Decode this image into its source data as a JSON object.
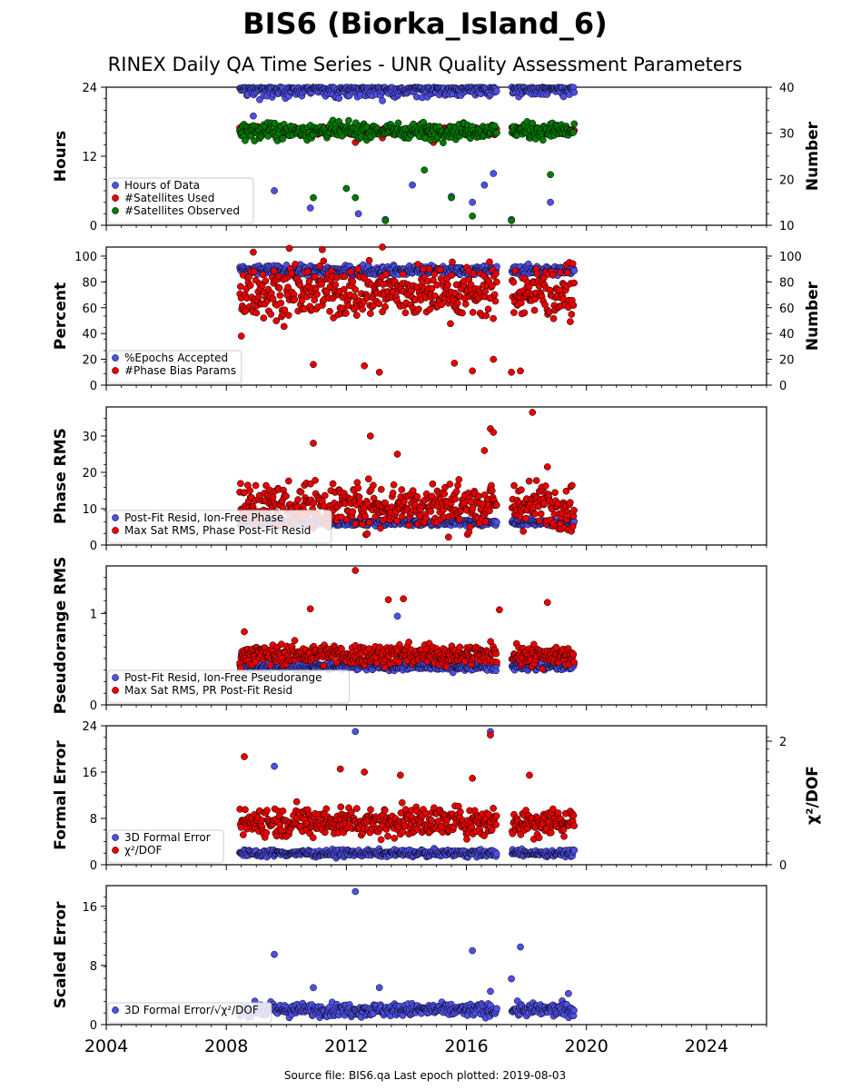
{
  "title": "BIS6 (Biorka_Island_6)",
  "subtitle": "RINEX Daily QA Time Series - UNR Quality Assessment Parameters",
  "footer": "Source file: BIS6.qa Last epoch plotted: 2019-08-03",
  "colors": {
    "blue": "#4f4fe8",
    "red": "#e60000",
    "green": "#007a00",
    "outline": "#000000"
  },
  "x_axis": {
    "range": [
      2004,
      2026
    ],
    "ticks": [
      2004,
      2008,
      2012,
      2016,
      2020,
      2024
    ]
  },
  "chart_data": [
    {
      "type": "scatter",
      "ylabel": "Hours",
      "ylim": [
        0,
        24
      ],
      "yticks": [
        "0",
        "12",
        "24"
      ],
      "ylabel_right": "Number",
      "ylim_right": [
        10,
        40
      ],
      "yticks_right": [
        "10",
        "20",
        "30",
        "40"
      ],
      "legend": [
        "Hours of Data",
        "#Satellites Used",
        "#Satellites Observed"
      ],
      "legend_loc": "lower-left",
      "series": [
        {
          "name": "Hours of Data",
          "color": "blue",
          "axis": "left",
          "base": 23.7,
          "spread": 1.0,
          "outliers": [
            [
              2008.9,
              19
            ],
            [
              2009.6,
              6
            ],
            [
              2010.8,
              3
            ],
            [
              2012.4,
              2
            ],
            [
              2013.3,
              1
            ],
            [
              2014.2,
              7
            ],
            [
              2015.5,
              5
            ],
            [
              2016.2,
              4
            ],
            [
              2016.6,
              7
            ],
            [
              2016.9,
              9
            ],
            [
              2017.5,
              1
            ],
            [
              2018.8,
              4
            ]
          ]
        },
        {
          "name": "#Satellites Used",
          "color": "red",
          "axis": "right",
          "base": 30.5,
          "spread": 0.6,
          "outliers": [
            [
              2012.3,
              28
            ],
            [
              2013.2,
              29
            ],
            [
              2014.9,
              28
            ],
            [
              2018.2,
              31
            ]
          ]
        },
        {
          "name": "#Satellites Observed",
          "color": "green",
          "axis": "right",
          "base": 30.5,
          "spread": 1.2,
          "outliers": [
            [
              2010.9,
              16
            ],
            [
              2012.0,
              18
            ],
            [
              2012.3,
              16
            ],
            [
              2013.3,
              11
            ],
            [
              2014.6,
              22
            ],
            [
              2015.5,
              16
            ],
            [
              2016.2,
              12
            ],
            [
              2017.5,
              11
            ],
            [
              2018.8,
              21
            ]
          ]
        }
      ]
    },
    {
      "type": "scatter",
      "ylabel": "Percent",
      "ylim": [
        0,
        107
      ],
      "yticks": [
        "0",
        "20",
        "40",
        "60",
        "80",
        "100"
      ],
      "ylabel_right": "Number",
      "ylim_right": [
        0,
        107
      ],
      "yticks_right": [
        "0",
        "20",
        "40",
        "60",
        "80",
        "100"
      ],
      "legend": [
        "%Epochs Accepted",
        "#Phase Bias Params"
      ],
      "legend_loc": "lower-left",
      "series": [
        {
          "name": "%Epochs Accepted",
          "color": "blue",
          "axis": "left",
          "base": 89,
          "spread": 2.5,
          "outliers": []
        },
        {
          "name": "#Phase Bias Params",
          "color": "red",
          "axis": "right",
          "base": 72,
          "spread": 14,
          "outliers": [
            [
              2008.5,
              38
            ],
            [
              2010.9,
              16
            ],
            [
              2012.6,
              15
            ],
            [
              2013.1,
              10
            ],
            [
              2015.6,
              17
            ],
            [
              2016.2,
              11
            ],
            [
              2016.9,
              20
            ],
            [
              2017.5,
              10
            ],
            [
              2017.8,
              11
            ],
            [
              2008.9,
              103
            ],
            [
              2010.1,
              106
            ],
            [
              2011.2,
              105
            ],
            [
              2013.2,
              107
            ]
          ]
        }
      ]
    },
    {
      "type": "scatter",
      "ylabel": "Phase RMS",
      "ylim": [
        0,
        38
      ],
      "yticks": [
        "0",
        "10",
        "20",
        "30"
      ],
      "legend": [
        "Post-Fit Resid, Ion-Free Phase",
        "Max Sat RMS, Phase Post-Fit Resid"
      ],
      "legend_loc": "lower-left",
      "series": [
        {
          "name": "Post-Fit Resid, Ion-Free Phase",
          "color": "blue",
          "axis": "left",
          "base": 6.2,
          "spread": 0.6,
          "outliers": [
            [
              2019.4,
              4.5
            ]
          ]
        },
        {
          "name": "Max Sat RMS, Phase Post-Fit Resid",
          "color": "red",
          "axis": "left",
          "base": 11,
          "spread": 4.5,
          "outliers": [
            [
              2010.9,
              28
            ],
            [
              2012.8,
              30
            ],
            [
              2013.7,
              25
            ],
            [
              2016.6,
              26
            ],
            [
              2016.8,
              32
            ],
            [
              2016.9,
              31
            ],
            [
              2018.2,
              36.5
            ],
            [
              2018.7,
              21.5
            ]
          ]
        }
      ]
    },
    {
      "type": "scatter",
      "ylabel": "Pseudorange RMS",
      "ylim": [
        0,
        1.52
      ],
      "yticks": [
        "0",
        "1"
      ],
      "legend": [
        "Post-Fit Resid, Ion-Free Pseudorange",
        "Max Sat RMS, PR Post-Fit Resid"
      ],
      "legend_loc": "lower-left",
      "series": [
        {
          "name": "Post-Fit Resid, Ion-Free Pseudorange",
          "color": "blue",
          "axis": "left",
          "base": 0.42,
          "spread": 0.03,
          "outliers": [
            [
              2008.5,
              0.55
            ],
            [
              2013.7,
              0.97
            ]
          ]
        },
        {
          "name": "Max Sat RMS, PR Post-Fit Resid",
          "color": "red",
          "axis": "left",
          "base": 0.55,
          "spread": 0.08,
          "outliers": [
            [
              2008.6,
              0.8
            ],
            [
              2010.8,
              1.05
            ],
            [
              2012.3,
              1.47
            ],
            [
              2013.4,
              1.15
            ],
            [
              2013.9,
              1.16
            ],
            [
              2018.7,
              1.12
            ],
            [
              2017.1,
              1.04
            ]
          ]
        }
      ]
    },
    {
      "type": "scatter",
      "ylabel": "Formal Error",
      "ylim": [
        0,
        24
      ],
      "yticks": [
        "0",
        "8",
        "16",
        "24"
      ],
      "ylabel_right": "χ²/DOF",
      "ylim_right": [
        0,
        2.25
      ],
      "yticks_right": [
        "0",
        "2"
      ],
      "legend": [
        "3D Formal Error",
        "χ²/DOF"
      ],
      "legend_loc": "lower-left",
      "series": [
        {
          "name": "3D Formal Error",
          "color": "blue",
          "axis": "left",
          "base": 2.0,
          "spread": 0.4,
          "outliers": [
            [
              2009.6,
              17
            ],
            [
              2012.3,
              23
            ],
            [
              2016.8,
              23
            ]
          ]
        },
        {
          "name": "χ²/DOF",
          "color": "red",
          "axis": "right",
          "base": 0.7,
          "spread": 0.17,
          "outliers": [
            [
              2008.6,
              1.75
            ],
            [
              2011.8,
              1.55
            ],
            [
              2012.6,
              1.5
            ],
            [
              2013.8,
              1.45
            ],
            [
              2016.2,
              1.4
            ],
            [
              2016.8,
              2.1
            ],
            [
              2018.1,
              1.45
            ]
          ]
        }
      ]
    },
    {
      "type": "scatter",
      "ylabel": "Scaled Error",
      "ylim": [
        0,
        18.8
      ],
      "yticks": [
        "0",
        "8",
        "16"
      ],
      "legend": [
        "3D Formal Error/√χ²/DOF"
      ],
      "legend_loc": "lower-left",
      "series": [
        {
          "name": "3D Formal Error/√χ²/DOF",
          "color": "blue",
          "axis": "left",
          "base": 2.0,
          "spread": 0.6,
          "outliers": [
            [
              2009.6,
              9.5
            ],
            [
              2010.9,
              5
            ],
            [
              2012.3,
              18
            ],
            [
              2013.1,
              5
            ],
            [
              2016.2,
              10
            ],
            [
              2016.8,
              4.5
            ],
            [
              2017.5,
              6.2
            ],
            [
              2017.8,
              10.5
            ],
            [
              2019.4,
              4.2
            ]
          ]
        }
      ]
    }
  ]
}
